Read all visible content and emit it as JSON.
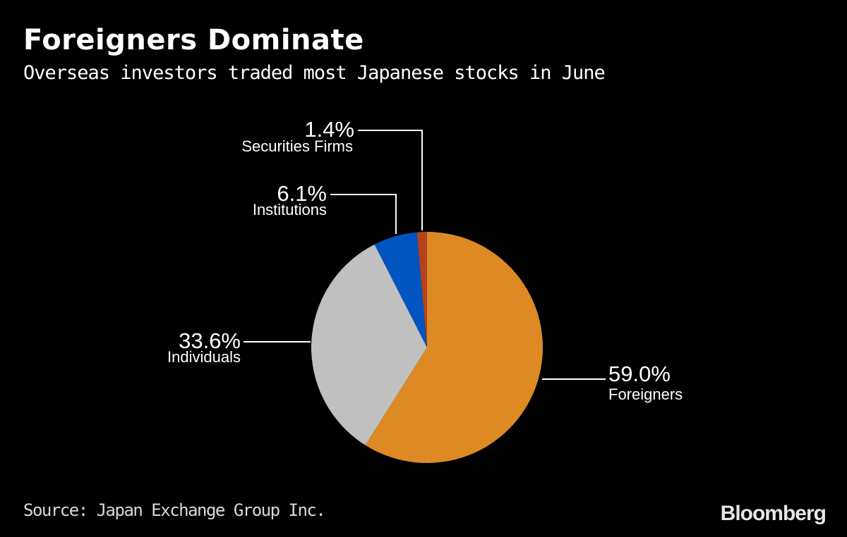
{
  "title": "Foreigners Dominate",
  "subtitle": "Overseas investors traded most Japanese stocks in June",
  "source": "Source: Japan Exchange Group Inc.",
  "logo": "Bloomberg",
  "chart_data": {
    "type": "pie",
    "title": "Foreigners Dominate",
    "subtitle": "Overseas investors traded most Japanese stocks in June",
    "slices": [
      {
        "name": "Foreigners",
        "value": 59.0,
        "label": "59.0%",
        "color": "#dd8a24"
      },
      {
        "name": "Individuals",
        "value": 33.6,
        "label": "33.6%",
        "color": "#c0c0c0"
      },
      {
        "name": "Institutions",
        "value": 6.1,
        "label": "6.1%",
        "color": "#0055c0"
      },
      {
        "name": "Securities Firms",
        "value": 1.4,
        "label": "1.4%",
        "color": "#b5421e"
      }
    ],
    "start": "top",
    "direction": "clockwise"
  }
}
